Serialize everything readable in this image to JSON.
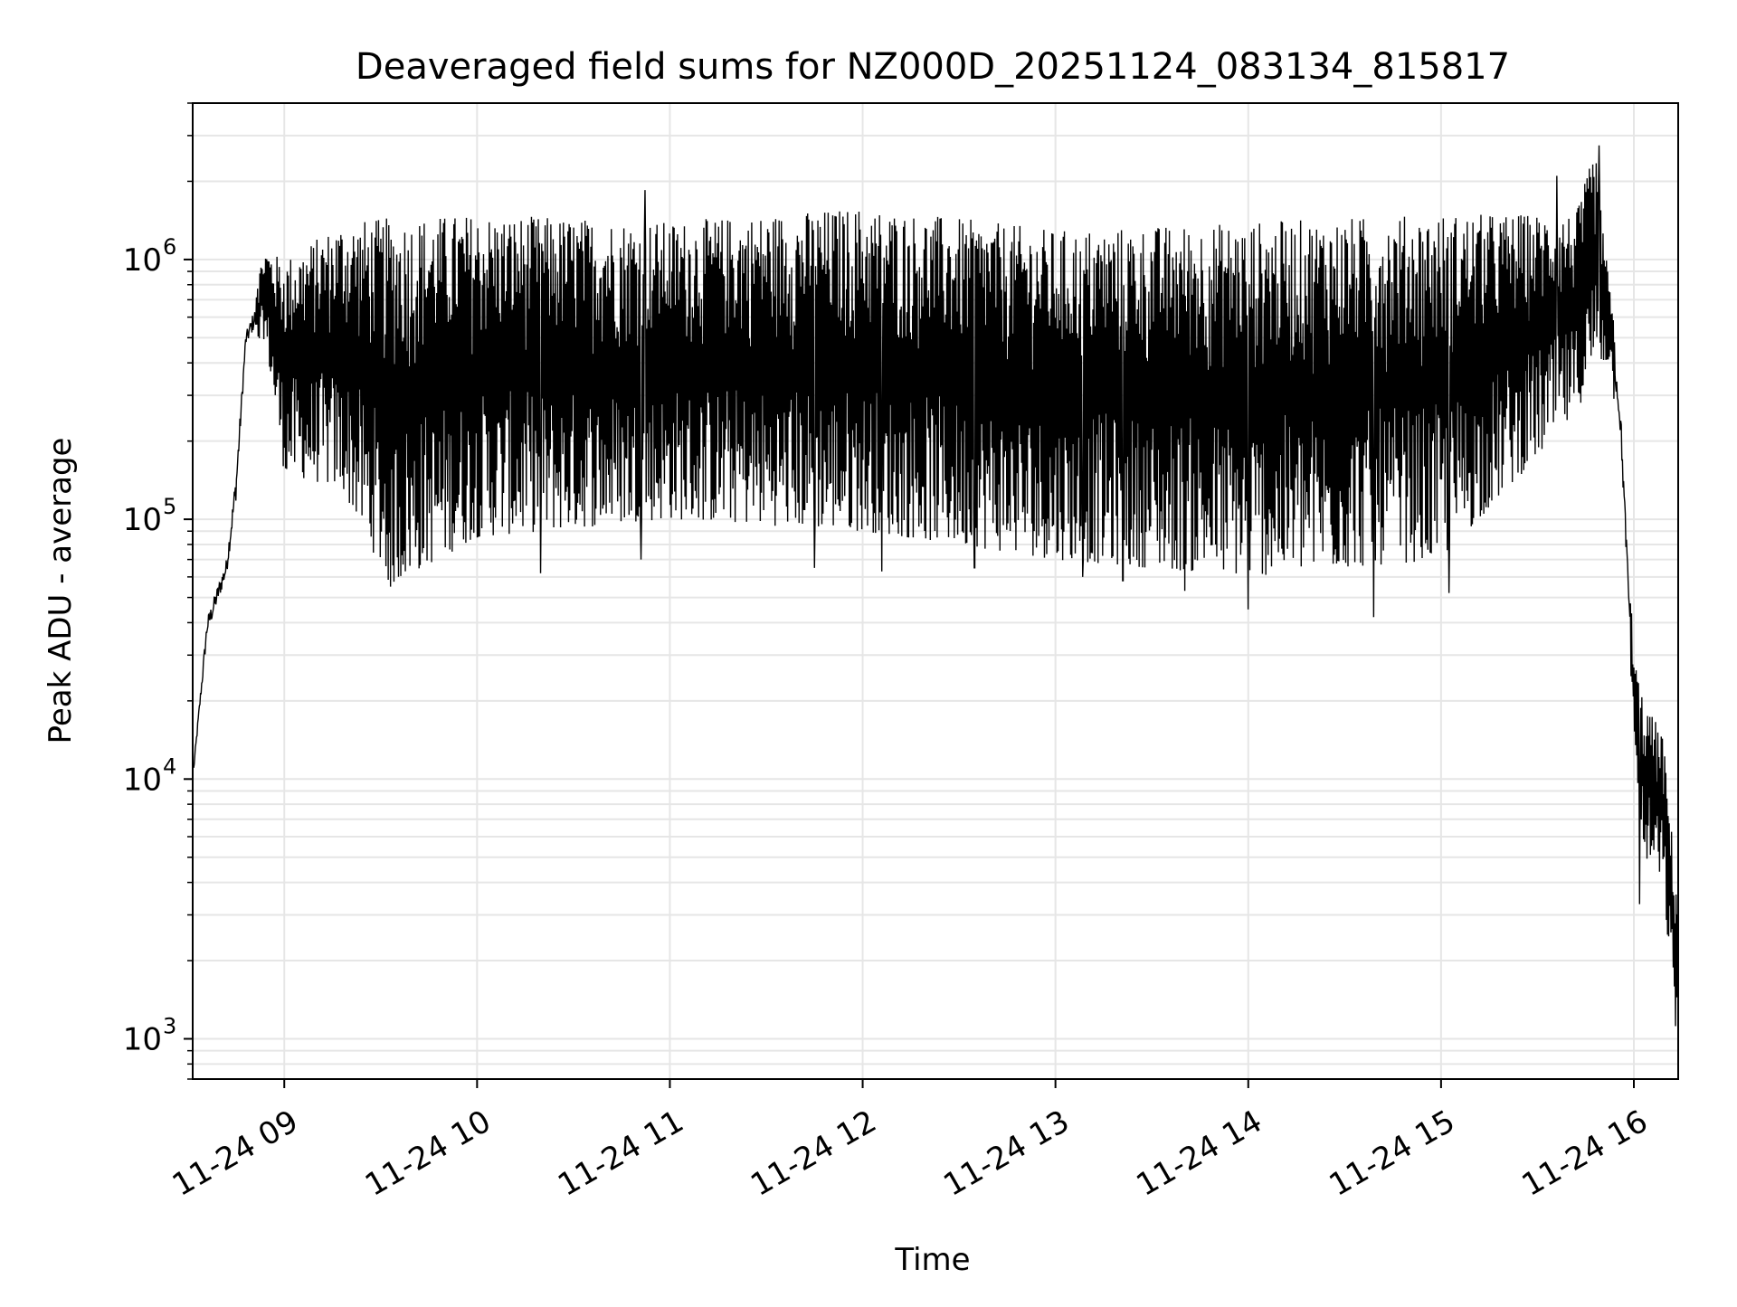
{
  "chart_data": {
    "type": "line",
    "title": "Deaveraged field sums for NZ000D_20251124_083134_815817",
    "xlabel": "Time",
    "ylabel": "Peak ADU - average",
    "yscale": "log",
    "ylim": [
      700,
      4000000
    ],
    "xlim_hours": [
      8.525,
      16.23
    ],
    "grid": true,
    "legend": "none",
    "series_color": "#000000",
    "x_ticks": [
      {
        "hour": 9,
        "label": "11-24 09"
      },
      {
        "hour": 10,
        "label": "11-24 10"
      },
      {
        "hour": 11,
        "label": "11-24 11"
      },
      {
        "hour": 12,
        "label": "11-24 12"
      },
      {
        "hour": 13,
        "label": "11-24 13"
      },
      {
        "hour": 14,
        "label": "11-24 14"
      },
      {
        "hour": 15,
        "label": "11-24 15"
      },
      {
        "hour": 16,
        "label": "11-24 16"
      }
    ],
    "y_ticks": [
      {
        "value": 1000,
        "base": "10",
        "exp": "3"
      },
      {
        "value": 10000,
        "base": "10",
        "exp": "4"
      },
      {
        "value": 100000,
        "base": "10",
        "exp": "5"
      },
      {
        "value": 1000000,
        "base": "10",
        "exp": "6"
      }
    ],
    "series": [
      {
        "name": "deaveraged field sum",
        "envelope": [
          {
            "hour": 8.53,
            "low": 10000,
            "high": 12000
          },
          {
            "hour": 8.6,
            "low": 30000,
            "high": 50000
          },
          {
            "hour": 8.7,
            "low": 50000,
            "high": 85000
          },
          {
            "hour": 8.75,
            "low": 90000,
            "high": 200000
          },
          {
            "hour": 8.8,
            "low": 400000,
            "high": 600000
          },
          {
            "hour": 8.9,
            "low": 500000,
            "high": 1100000
          },
          {
            "hour": 9.0,
            "low": 150000,
            "high": 1000000
          },
          {
            "hour": 9.3,
            "low": 130000,
            "high": 1400000
          },
          {
            "hour": 9.55,
            "low": 55000,
            "high": 1450000
          },
          {
            "hour": 10.0,
            "low": 85000,
            "high": 1500000
          },
          {
            "hour": 11.0,
            "low": 100000,
            "high": 1400000
          },
          {
            "hour": 12.0,
            "low": 90000,
            "high": 1600000
          },
          {
            "hour": 13.0,
            "low": 70000,
            "high": 1300000
          },
          {
            "hour": 14.0,
            "low": 60000,
            "high": 1400000
          },
          {
            "hour": 15.0,
            "low": 70000,
            "high": 1500000
          },
          {
            "hour": 15.7,
            "low": 250000,
            "high": 1500000
          },
          {
            "hour": 15.8,
            "low": 400000,
            "high": 2700000
          },
          {
            "hour": 15.88,
            "low": 400000,
            "high": 700000
          },
          {
            "hour": 15.93,
            "low": 150000,
            "high": 400000
          },
          {
            "hour": 15.97,
            "low": 40000,
            "high": 80000
          },
          {
            "hour": 16.0,
            "low": 15000,
            "high": 30000
          },
          {
            "hour": 16.05,
            "low": 5000,
            "high": 20000
          },
          {
            "hour": 16.15,
            "low": 4000,
            "high": 15000
          },
          {
            "hour": 16.22,
            "low": 1000,
            "high": 4000
          }
        ],
        "spikes": [
          {
            "hour": 9.55,
            "value": 55000
          },
          {
            "hour": 10.33,
            "value": 62000
          },
          {
            "hour": 10.85,
            "value": 70000
          },
          {
            "hour": 10.87,
            "value": 1850000
          },
          {
            "hour": 11.75,
            "value": 65000
          },
          {
            "hour": 12.1,
            "value": 63000
          },
          {
            "hour": 12.58,
            "value": 65000
          },
          {
            "hour": 13.14,
            "value": 60000
          },
          {
            "hour": 13.35,
            "value": 58000
          },
          {
            "hour": 13.67,
            "value": 53000
          },
          {
            "hour": 14.0,
            "value": 45000
          },
          {
            "hour": 14.65,
            "value": 42000
          },
          {
            "hour": 15.04,
            "value": 52000
          },
          {
            "hour": 15.6,
            "value": 2100000
          },
          {
            "hour": 15.82,
            "value": 2750000
          },
          {
            "hour": 16.03,
            "value": 3300
          }
        ]
      }
    ]
  }
}
